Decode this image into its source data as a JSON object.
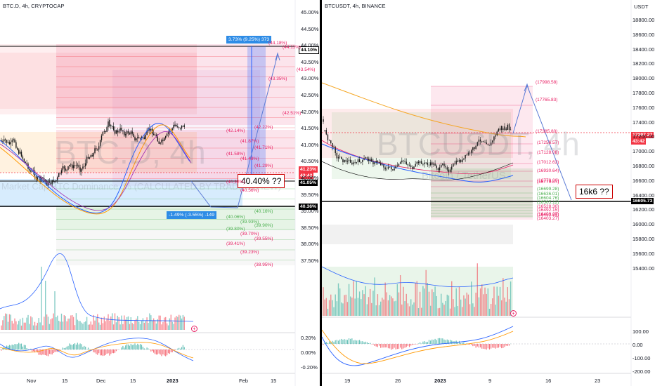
{
  "left": {
    "title": "BTC.D, 4h, CRYPTOCAP",
    "watermark": "BTC.D, 4h",
    "watermark_sub": "Market Cap BTC Dominance, % (CALCULATED BY TRADINGVIEW)",
    "price_axis": [
      "45.00%",
      "44.50%",
      "44.00%",
      "43.50%",
      "43.00%",
      "42.50%",
      "42.00%",
      "41.50%",
      "41.00%",
      "40.50%",
      "40.00%",
      "39.50%",
      "39.00%",
      "38.50%",
      "38.00%",
      "37.50%"
    ],
    "osc_axis": [
      "0.20%",
      "0.00%",
      "-0.20%"
    ],
    "time_axis": [
      "Nov",
      "15",
      "Dec",
      "15",
      "2023",
      "Feb",
      "15"
    ],
    "tag_top": "44.10%",
    "tag_price": "41.23%",
    "tag_time": "43:42",
    "tag_mid": "41.05%",
    "tag_low": "40.36%",
    "measure_up": "3.73% (9.25%) 373",
    "measure_down": "-1.49% (-3.55%) -149",
    "note": "40.40% ??",
    "fib_labels": [
      "(44.18%)",
      "(44.11%)",
      "(43.54%)",
      "(43.35%)",
      "(42.51%)",
      "(42.22%)",
      "(42.14%)",
      "(41.87%)",
      "(41.71%)",
      "(41.58%)",
      "(41.48%)",
      "(41.29%)",
      "(40.92%)",
      "(40.56%)",
      "(40.16%)",
      "(40.06%)",
      "(39.93%)",
      "(39.90%)",
      "(39.80%)",
      "(39.70%)",
      "(39.55%)",
      "(39.41%)",
      "(39.23%)",
      "(38.95%)"
    ]
  },
  "right": {
    "title": "BTCUSDT, 4h, BINANCE",
    "currency": "USDT",
    "watermark": "BTCUSDT, 4h",
    "watermark_sub": "Bitcoin / TetherUS",
    "price_axis": [
      "18800.00",
      "18600.00",
      "18400.00",
      "18200.00",
      "18000.00",
      "17800.00",
      "17600.00",
      "17400.00",
      "17200.00",
      "17000.00",
      "16800.00",
      "16600.00",
      "16400.00",
      "16200.00",
      "16000.00",
      "15800.00",
      "15600.00",
      "15400.00"
    ],
    "osc_axis": [
      "100.00",
      "0.00",
      "-100.00",
      "-200.00"
    ],
    "time_axis": [
      "19",
      "26",
      "2023",
      "9",
      "16",
      "23"
    ],
    "tag_price": "17397.27",
    "tag_time": "43:42",
    "tag_level": "16605.73",
    "note": "16k6 ??",
    "fib_labels": [
      "(17998.58)",
      "(17765.83)",
      "(17385.80)",
      "(17256.57)",
      "(17128.08)",
      "(17012.62)",
      "(16930.64)",
      "(16779.80)",
      "(16779.87)",
      "(16699.28)",
      "(16636.01)",
      "(16604.76)",
      "(16565.12)",
      "(16528.30)",
      "(16492.15)",
      "(16450.99)",
      "(16403.27)",
      "(16403.27)"
    ]
  },
  "colors": {
    "up": "#26a69a",
    "down": "#ef5350",
    "bar": "#2a2e39",
    "accent_blue": "#2962ff",
    "fib_red": "#f23645",
    "fib_pink": "#e91e63"
  },
  "icons": {
    "lightning": "lightning-icon"
  }
}
